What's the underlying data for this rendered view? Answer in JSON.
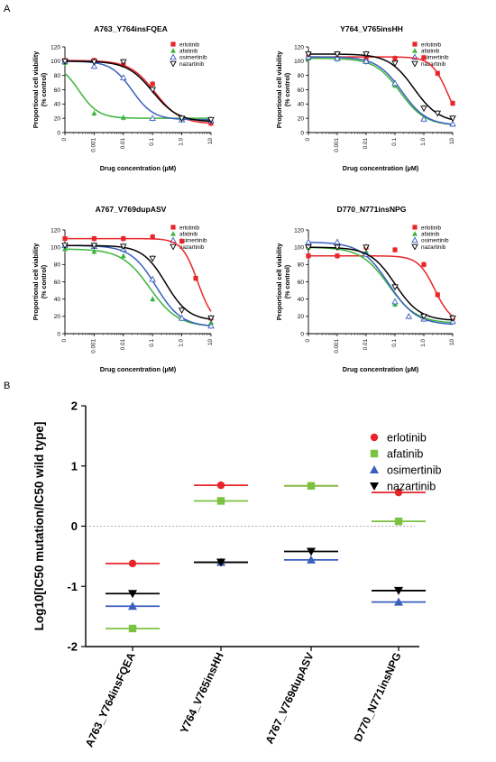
{
  "panel_labels": {
    "a": "A",
    "b": "B"
  },
  "colors": {
    "erlotinib": "#e8262a",
    "afatinib": "#3cb43c",
    "osimertinib": "#3a5fbd",
    "nazartinib": "#000000",
    "afatinib_b": "#7cc242"
  },
  "chart_data": [
    {
      "type": "line",
      "title": "A763_Y764insFQEA",
      "xlabel": "Drug concentration (µM)",
      "ylabel": "Proportional cell viability (% control)",
      "xscale": "log",
      "xticks": [
        "0",
        "0.001",
        "0.01",
        "0.1",
        "1.0",
        "10"
      ],
      "yticks": [
        "0",
        "20",
        "40",
        "60",
        "80",
        "100",
        "120"
      ],
      "ylim": [
        0,
        120
      ],
      "legend": [
        "erlotinib",
        "afatinib",
        "osimertinib",
        "nazartinib"
      ],
      "series": [
        {
          "name": "erlotinib",
          "ic50": 0.12,
          "hill": 1.0,
          "bottom": 12,
          "points": [
            [
              0.0001,
              101
            ],
            [
              0.001,
              101
            ],
            [
              0.01,
              95
            ],
            [
              0.1,
              68
            ],
            [
              1,
              18
            ],
            [
              10,
              13
            ]
          ]
        },
        {
          "name": "afatinib",
          "ic50": 0.0003,
          "hill": 1.3,
          "bottom": 20,
          "points": [
            [
              0.0001,
              98
            ],
            [
              0.001,
              27
            ],
            [
              0.01,
              21
            ],
            [
              0.1,
              20
            ],
            [
              1,
              19
            ],
            [
              10,
              17
            ]
          ]
        },
        {
          "name": "osimertinib",
          "ic50": 0.02,
          "hill": 1.2,
          "bottom": 18,
          "points": [
            [
              0.0001,
              100
            ],
            [
              0.001,
              93
            ],
            [
              0.01,
              77
            ],
            [
              0.1,
              20
            ],
            [
              1,
              18
            ],
            [
              10,
              17
            ]
          ]
        },
        {
          "name": "nazartinib",
          "ic50": 0.1,
          "hill": 1.0,
          "bottom": 15,
          "points": [
            [
              0.0001,
              100
            ],
            [
              0.001,
              99
            ],
            [
              0.01,
              99
            ],
            [
              0.1,
              60
            ],
            [
              1,
              20
            ],
            [
              10,
              18
            ]
          ]
        }
      ]
    },
    {
      "type": "line",
      "title": "Y764_V765insHH",
      "xlabel": "Drug concentration (µM)",
      "ylabel": "Proportional cell viability (% control)",
      "xscale": "log",
      "xticks": [
        "0",
        "0.001",
        "0.01",
        "0.1",
        "1.0",
        "10"
      ],
      "yticks": [
        "0",
        "20",
        "40",
        "60",
        "80",
        "100",
        "120"
      ],
      "ylim": [
        0,
        120
      ],
      "legend": [
        "erlotinib",
        "afatinib",
        "osimertinib",
        "nazartinib"
      ],
      "series": [
        {
          "name": "erlotinib",
          "ic50": 7,
          "hill": 1.5,
          "bottom": 0,
          "points": [
            [
              0.0001,
              106
            ],
            [
              0.001,
              104
            ],
            [
              0.01,
              104
            ],
            [
              0.1,
              104
            ],
            [
              1,
              105
            ],
            [
              3,
              83
            ],
            [
              10,
              41
            ]
          ]
        },
        {
          "name": "afatinib",
          "ic50": 0.15,
          "hill": 1.0,
          "bottom": 10,
          "points": [
            [
              0.0001,
              104
            ],
            [
              0.001,
              103
            ],
            [
              0.01,
              99
            ],
            [
              0.1,
              66
            ],
            [
              1,
              20
            ],
            [
              10,
              13
            ]
          ]
        },
        {
          "name": "osimertinib",
          "ic50": 0.17,
          "hill": 1.0,
          "bottom": 10,
          "points": [
            [
              0.0001,
              106
            ],
            [
              0.001,
              104
            ],
            [
              0.01,
              100
            ],
            [
              0.1,
              69
            ],
            [
              1,
              19
            ],
            [
              10,
              12
            ]
          ]
        },
        {
          "name": "nazartinib",
          "ic50": 0.45,
          "hill": 1.0,
          "bottom": 14,
          "points": [
            [
              0.0001,
              110
            ],
            [
              0.001,
              110
            ],
            [
              0.01,
              110
            ],
            [
              0.1,
              97
            ],
            [
              1,
              34
            ],
            [
              3,
              27
            ],
            [
              10,
              20
            ]
          ]
        }
      ]
    },
    {
      "type": "line",
      "title": "A767_V769dupASV",
      "xlabel": "Drug concentration (µM)",
      "ylabel": "Proportional cell viability (% control)",
      "xscale": "log",
      "xticks": [
        "0",
        "0.001",
        "0.01",
        "0.1",
        "1.0",
        "10"
      ],
      "yticks": [
        "0",
        "20",
        "40",
        "60",
        "80",
        "100",
        "120"
      ],
      "ylim": [
        0,
        120
      ],
      "legend": [
        "erlotinib",
        "afatinib",
        "osimertinib",
        "nazartinib"
      ],
      "series": [
        {
          "name": "erlotinib",
          "ic50": 3.5,
          "hill": 1.6,
          "bottom": 10,
          "points": [
            [
              0.0001,
              110
            ],
            [
              0.001,
              110
            ],
            [
              0.01,
              110
            ],
            [
              0.1,
              112
            ],
            [
              1,
              107
            ],
            [
              3,
              64
            ],
            [
              10,
              18
            ]
          ]
        },
        {
          "name": "afatinib",
          "ic50": 0.08,
          "hill": 0.9,
          "bottom": 8,
          "points": [
            [
              0.0001,
              98
            ],
            [
              0.001,
              95
            ],
            [
              0.01,
              90
            ],
            [
              0.1,
              40
            ],
            [
              1,
              18
            ],
            [
              10,
              13
            ]
          ]
        },
        {
          "name": "osimertinib",
          "ic50": 0.13,
          "hill": 1.0,
          "bottom": 8,
          "points": [
            [
              0.0001,
              102
            ],
            [
              0.001,
              101
            ],
            [
              0.01,
              98
            ],
            [
              0.1,
              63
            ],
            [
              1,
              18
            ],
            [
              10,
              9
            ]
          ]
        },
        {
          "name": "nazartinib",
          "ic50": 0.28,
          "hill": 1.1,
          "bottom": 15,
          "points": [
            [
              0.0001,
              102
            ],
            [
              0.001,
              102
            ],
            [
              0.01,
              101
            ],
            [
              0.1,
              87
            ],
            [
              1,
              27
            ],
            [
              10,
              18
            ]
          ]
        }
      ]
    },
    {
      "type": "line",
      "title": "D770_N771insNPG",
      "xlabel": "Drug concentration (µM)",
      "ylabel": "Proportional cell viability (% control)",
      "xscale": "log",
      "xticks": [
        "0",
        "0.001",
        "0.01",
        "0.1",
        "1.0",
        "10"
      ],
      "yticks": [
        "0",
        "20",
        "40",
        "60",
        "80",
        "100",
        "120"
      ],
      "ylim": [
        0,
        120
      ],
      "legend": [
        "erlotinib",
        "afatinib",
        "osimertinib",
        "nazartinib"
      ],
      "series": [
        {
          "name": "erlotinib",
          "ic50": 2.4,
          "hill": 1.5,
          "bottom": 12,
          "points": [
            [
              0.0001,
              90
            ],
            [
              0.001,
              90
            ],
            [
              0.01,
              100
            ],
            [
              0.1,
              97
            ],
            [
              1,
              80
            ],
            [
              3,
              45
            ],
            [
              10,
              18
            ]
          ]
        },
        {
          "name": "afatinib",
          "ic50": 0.06,
          "hill": 0.9,
          "bottom": 12,
          "points": [
            [
              0.0001,
              100
            ],
            [
              0.001,
              101
            ],
            [
              0.01,
              95
            ],
            [
              0.1,
              34
            ],
            [
              1,
              17
            ],
            [
              10,
              15
            ]
          ]
        },
        {
          "name": "osimertinib",
          "ic50": 0.06,
          "hill": 0.9,
          "bottom": 10,
          "points": [
            [
              0.0001,
              106
            ],
            [
              0.001,
              106
            ],
            [
              0.01,
              92
            ],
            [
              0.1,
              37
            ],
            [
              0.3,
              20
            ],
            [
              1,
              17
            ],
            [
              10,
              14
            ]
          ]
        },
        {
          "name": "nazartinib",
          "ic50": 0.1,
          "hill": 1.0,
          "bottom": 15,
          "points": [
            [
              0.0001,
              100
            ],
            [
              0.001,
              100
            ],
            [
              0.01,
              100
            ],
            [
              0.1,
              54
            ],
            [
              1,
              20
            ],
            [
              10,
              18
            ]
          ]
        }
      ]
    },
    {
      "type": "scatter",
      "ylabel": "Log10[IC50 mutation/IC50 wild type]",
      "categories": [
        "A763_Y764insFQEA",
        "Y764_V765insHH",
        "A767_V769dupASV",
        "D770_N771insNPG"
      ],
      "yticks": [
        "-2",
        "-1",
        "0",
        "1",
        "2"
      ],
      "ylim": [
        -2,
        2
      ],
      "reference_line": 0,
      "legend": [
        "erlotinib",
        "afatinib",
        "osimertinib",
        "nazartinib"
      ],
      "legend_position": "top-right",
      "series": [
        {
          "name": "erlotinib",
          "marker": "circle",
          "values": [
            -0.62,
            0.68,
            0.67,
            0.56
          ]
        },
        {
          "name": "afatinib",
          "marker": "square",
          "values": [
            -1.7,
            0.42,
            0.67,
            0.08
          ]
        },
        {
          "name": "osimertinib",
          "marker": "triangle-up",
          "values": [
            -1.33,
            -0.6,
            -0.56,
            -1.26
          ]
        },
        {
          "name": "nazartinib",
          "marker": "triangle-down",
          "values": [
            -1.12,
            -0.6,
            -0.42,
            -1.07
          ]
        }
      ]
    }
  ]
}
